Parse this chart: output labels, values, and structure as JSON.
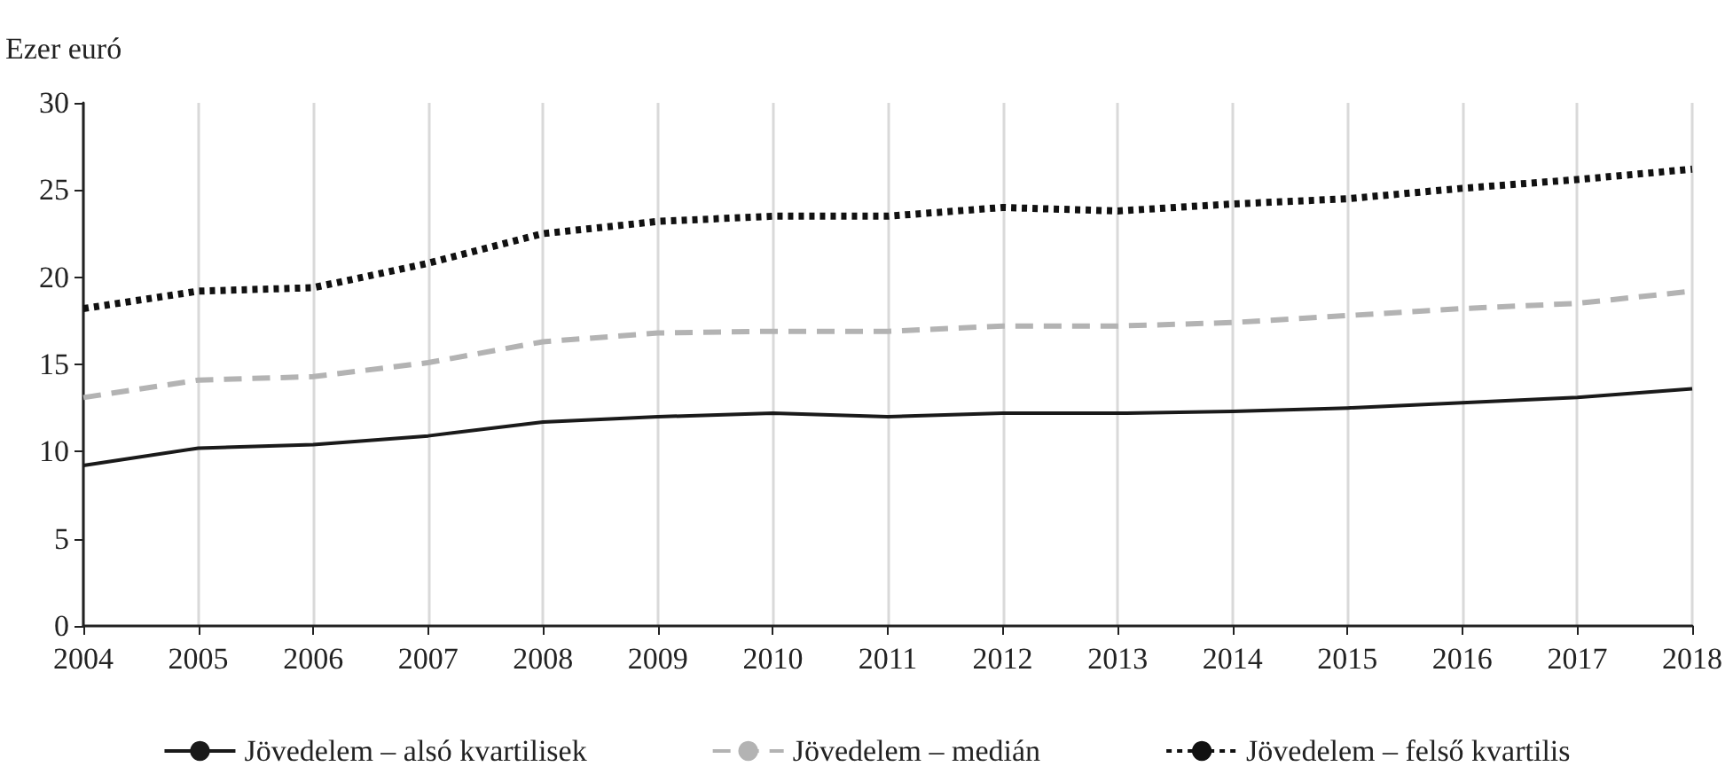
{
  "chart_data": {
    "type": "line",
    "ylabel": "Ezer euró",
    "categories": [
      "2004",
      "2005",
      "2006",
      "2007",
      "2008",
      "2009",
      "2010",
      "2011",
      "2012",
      "2013",
      "2014",
      "2015",
      "2016",
      "2017",
      "2018"
    ],
    "series": [
      {
        "name": "Jövedelem – alsó kvartilisek",
        "color": "#1a1a1a",
        "line_style": "solid",
        "values": [
          9.2,
          10.2,
          10.4,
          10.9,
          11.7,
          12.0,
          12.2,
          12.0,
          12.2,
          12.2,
          12.3,
          12.5,
          12.8,
          13.1,
          13.6
        ]
      },
      {
        "name": "Jövedelem – medián",
        "color": "#b3b3b3",
        "line_style": "dashed",
        "values": [
          13.1,
          14.1,
          14.3,
          15.1,
          16.3,
          16.8,
          16.9,
          16.9,
          17.2,
          17.2,
          17.4,
          17.8,
          18.2,
          18.5,
          19.2
        ]
      },
      {
        "name": "Jövedelem – felső kvartilis",
        "color": "#111111",
        "line_style": "dotted",
        "values": [
          18.2,
          19.2,
          19.4,
          20.8,
          22.5,
          23.2,
          23.5,
          23.5,
          24.0,
          23.8,
          24.2,
          24.5,
          25.1,
          25.6,
          26.2
        ]
      }
    ],
    "ylim": [
      0,
      30
    ],
    "yticks": [
      0,
      5,
      10,
      15,
      20,
      25,
      30
    ],
    "grid": "x",
    "legend": "bottom",
    "marker": "none"
  }
}
